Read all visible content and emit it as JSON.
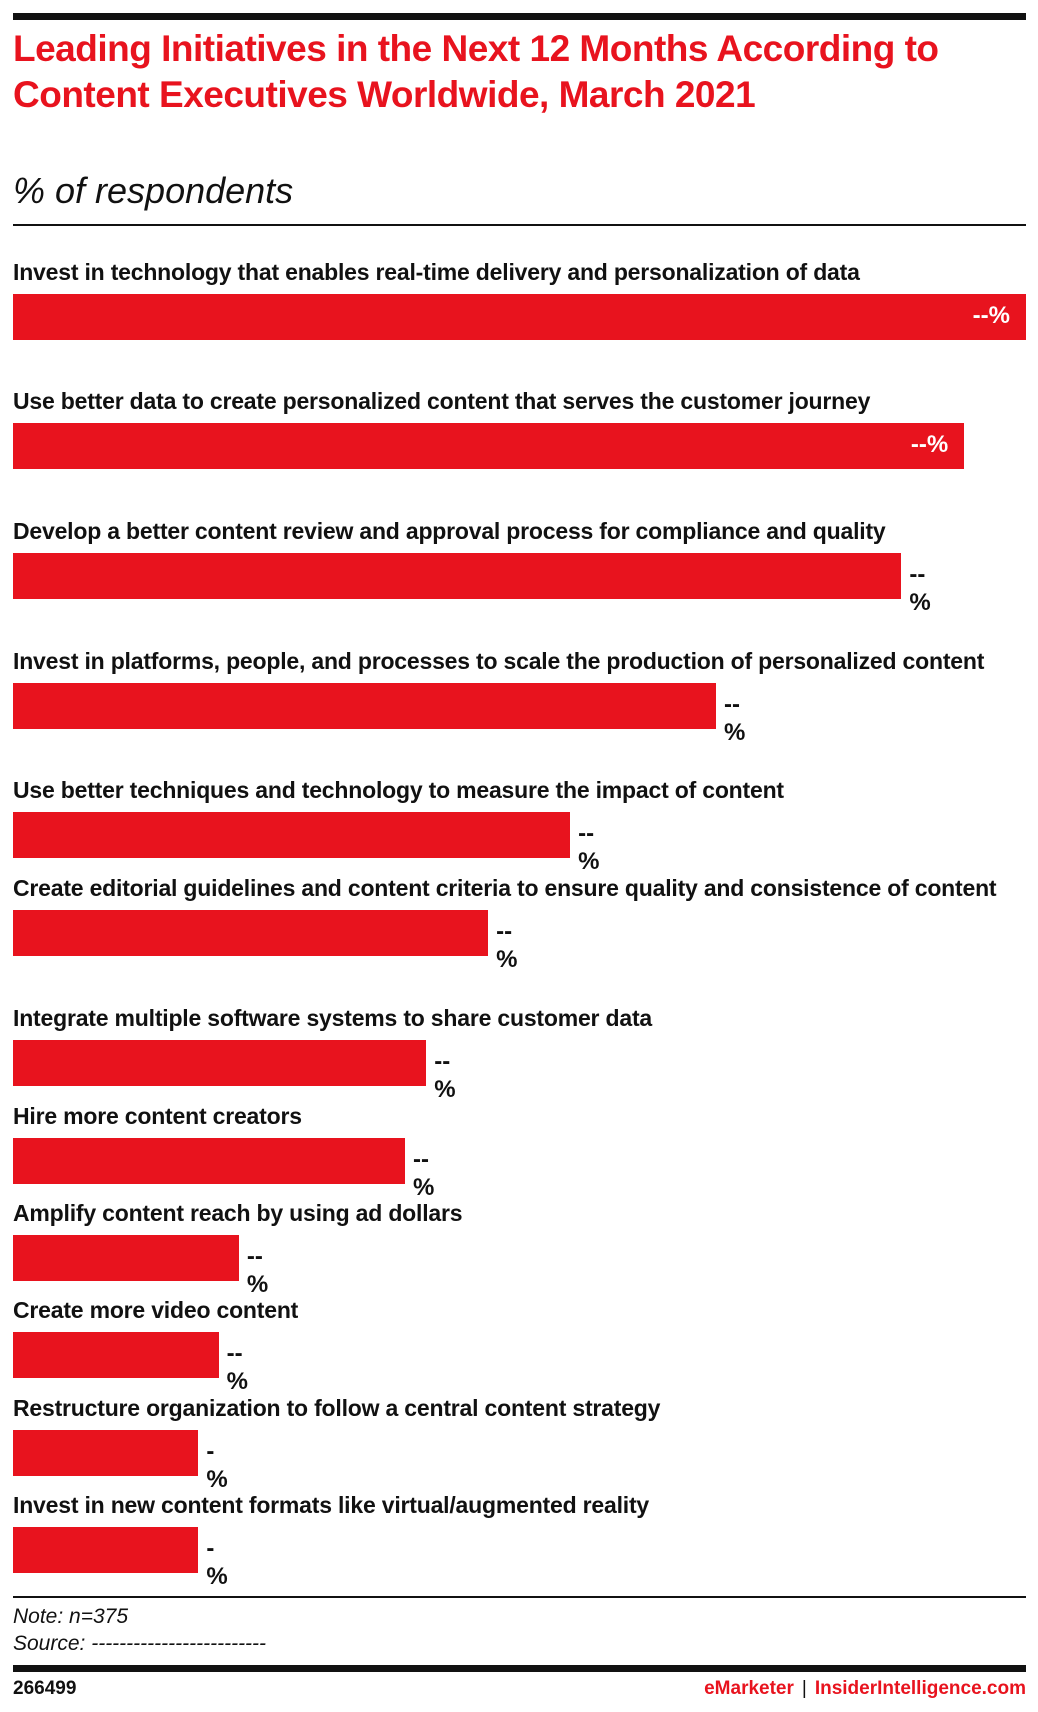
{
  "chart_data": {
    "type": "bar",
    "orientation": "horizontal",
    "title": "Leading Initiatives in the Next 12 Months According to Content Executives Worldwide, March 2021",
    "subtitle": "% of respondents",
    "categories": [
      "Invest in technology that enables real-time delivery and personalization of data",
      "Use better data to create personalized content that serves the customer journey",
      "Develop a better content review and approval process for compliance and quality",
      "Invest in platforms, people, and processes to scale the production of personalized content",
      "Use better techniques and technology to measure the impact of content",
      "Create editorial guidelines and content criteria to ensure quality and consistence of content",
      "Integrate multiple software systems to share customer data",
      "Hire more content creators",
      "Amplify content reach by using ad dollars",
      "Create more video content",
      "Restructure organization to follow a central content strategy",
      "Invest in new content formats like virtual/augmented reality"
    ],
    "value_labels": [
      "--%",
      "--%",
      "--%",
      "--%",
      "--%",
      "--%",
      "--%",
      "--%",
      "--%",
      "--%",
      "-%",
      "-%"
    ],
    "relative_values": [
      1.0,
      0.939,
      0.877,
      0.694,
      0.55,
      0.469,
      0.408,
      0.387,
      0.223,
      0.203,
      0.183,
      0.183
    ],
    "bar_color": "#e8131e",
    "grid": false
  },
  "footer": {
    "note": "Note: n=375",
    "source": "Source: -------------------------",
    "chart_id": "266499",
    "brand1": "eMarketer",
    "separator": "|",
    "brand2": "InsiderIntelligence.com"
  }
}
